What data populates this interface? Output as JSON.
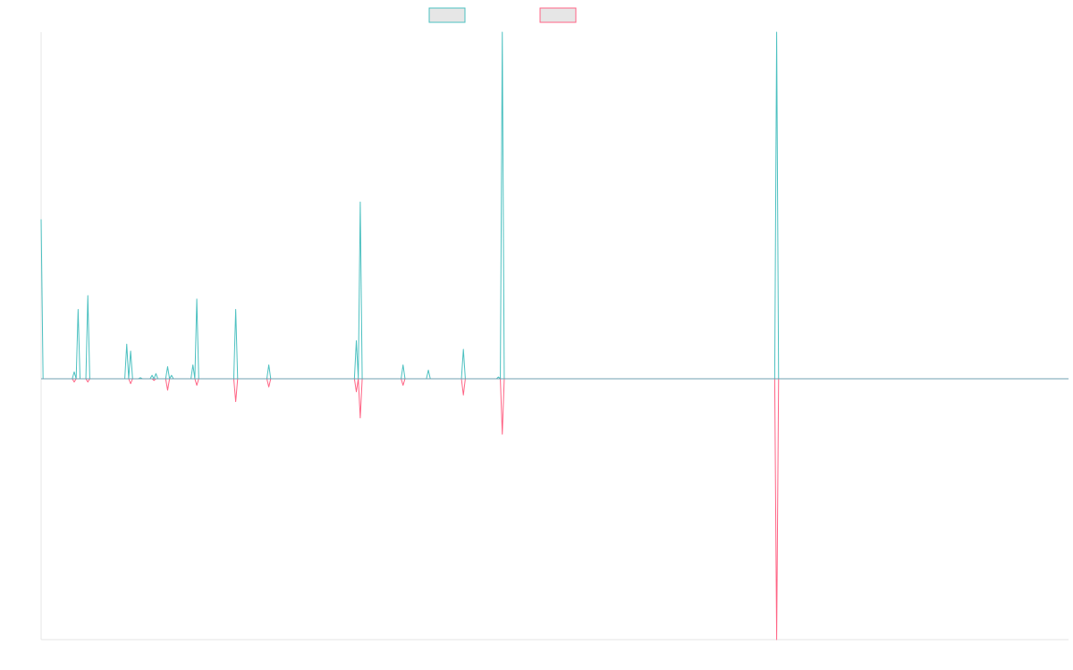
{
  "chart_data": {
    "type": "line",
    "title": "",
    "xlabel": "",
    "ylabel": "",
    "grid": false,
    "legend_position": "top-center",
    "xlim": [
      0,
      264
    ],
    "ylim": [
      -1,
      1
    ],
    "series": [
      {
        "color": "#4bc0c0",
        "fill": "#e6e6e6",
        "points": [
          [
            0,
            0.46
          ],
          [
            0.5,
            0
          ],
          [
            8,
            0
          ],
          [
            8.5,
            0.02
          ],
          [
            9,
            0
          ],
          [
            9.5,
            0.2
          ],
          [
            10,
            0
          ],
          [
            11.5,
            0
          ],
          [
            12,
            0.24
          ],
          [
            12.5,
            0
          ],
          [
            21.5,
            0
          ],
          [
            22,
            0.1
          ],
          [
            22.5,
            0
          ],
          [
            23,
            0.08
          ],
          [
            23.5,
            0
          ],
          [
            25,
            0
          ],
          [
            25.5,
            0.003
          ],
          [
            26,
            0
          ],
          [
            28,
            0
          ],
          [
            28.5,
            0.01
          ],
          [
            29,
            0
          ],
          [
            29.5,
            0.015
          ],
          [
            30,
            0
          ],
          [
            32,
            0
          ],
          [
            32.5,
            0.035
          ],
          [
            33,
            0
          ],
          [
            33.5,
            0.01
          ],
          [
            34,
            0
          ],
          [
            38.5,
            0
          ],
          [
            39,
            0.04
          ],
          [
            39.5,
            0
          ],
          [
            40,
            0.23
          ],
          [
            40.5,
            0
          ],
          [
            49.5,
            0
          ],
          [
            50,
            0.2
          ],
          [
            50.5,
            0
          ],
          [
            58,
            0
          ],
          [
            58.5,
            0.04
          ],
          [
            59,
            0
          ],
          [
            80.5,
            0
          ],
          [
            81,
            0.11
          ],
          [
            81.5,
            0
          ],
          [
            82,
            0.51
          ],
          [
            82.5,
            0
          ],
          [
            92.5,
            0
          ],
          [
            93,
            0.04
          ],
          [
            93.5,
            0
          ],
          [
            99,
            0
          ],
          [
            99.5,
            0.025
          ],
          [
            100,
            0
          ],
          [
            108,
            0
          ],
          [
            108.5,
            0.085
          ],
          [
            109,
            0
          ],
          [
            117,
            0
          ],
          [
            117.5,
            0.005
          ],
          [
            118,
            0
          ],
          [
            118.5,
            1.0
          ],
          [
            119,
            0
          ],
          [
            188.5,
            0
          ],
          [
            189,
            1.0
          ],
          [
            189.5,
            0
          ],
          [
            264,
            0
          ]
        ]
      },
      {
        "color": "#ff6384",
        "fill": "#e6e6e6",
        "points": [
          [
            0,
            0
          ],
          [
            8,
            0
          ],
          [
            8.5,
            -0.01
          ],
          [
            9,
            0
          ],
          [
            11.5,
            0
          ],
          [
            12,
            -0.01
          ],
          [
            12.5,
            0
          ],
          [
            22.5,
            0
          ],
          [
            23,
            -0.015
          ],
          [
            23.5,
            0
          ],
          [
            28.5,
            0
          ],
          [
            29,
            -0.005
          ],
          [
            29.5,
            0
          ],
          [
            32,
            0
          ],
          [
            32.5,
            -0.035
          ],
          [
            33,
            0
          ],
          [
            39.5,
            0
          ],
          [
            40,
            -0.02
          ],
          [
            40.5,
            0
          ],
          [
            49.5,
            0
          ],
          [
            50,
            -0.07
          ],
          [
            50.5,
            0
          ],
          [
            58,
            0
          ],
          [
            58.5,
            -0.025
          ],
          [
            59,
            0
          ],
          [
            80.5,
            0
          ],
          [
            81,
            -0.04
          ],
          [
            81.5,
            0
          ],
          [
            82,
            -0.12
          ],
          [
            82.5,
            0
          ],
          [
            92.5,
            0
          ],
          [
            93,
            -0.02
          ],
          [
            93.5,
            0
          ],
          [
            108,
            0
          ],
          [
            108.5,
            -0.05
          ],
          [
            109,
            0
          ],
          [
            118,
            0
          ],
          [
            118.5,
            -0.17
          ],
          [
            119,
            0
          ],
          [
            188.5,
            0
          ],
          [
            189,
            -0.8
          ],
          [
            189.5,
            0
          ],
          [
            264,
            0
          ]
        ]
      }
    ]
  }
}
